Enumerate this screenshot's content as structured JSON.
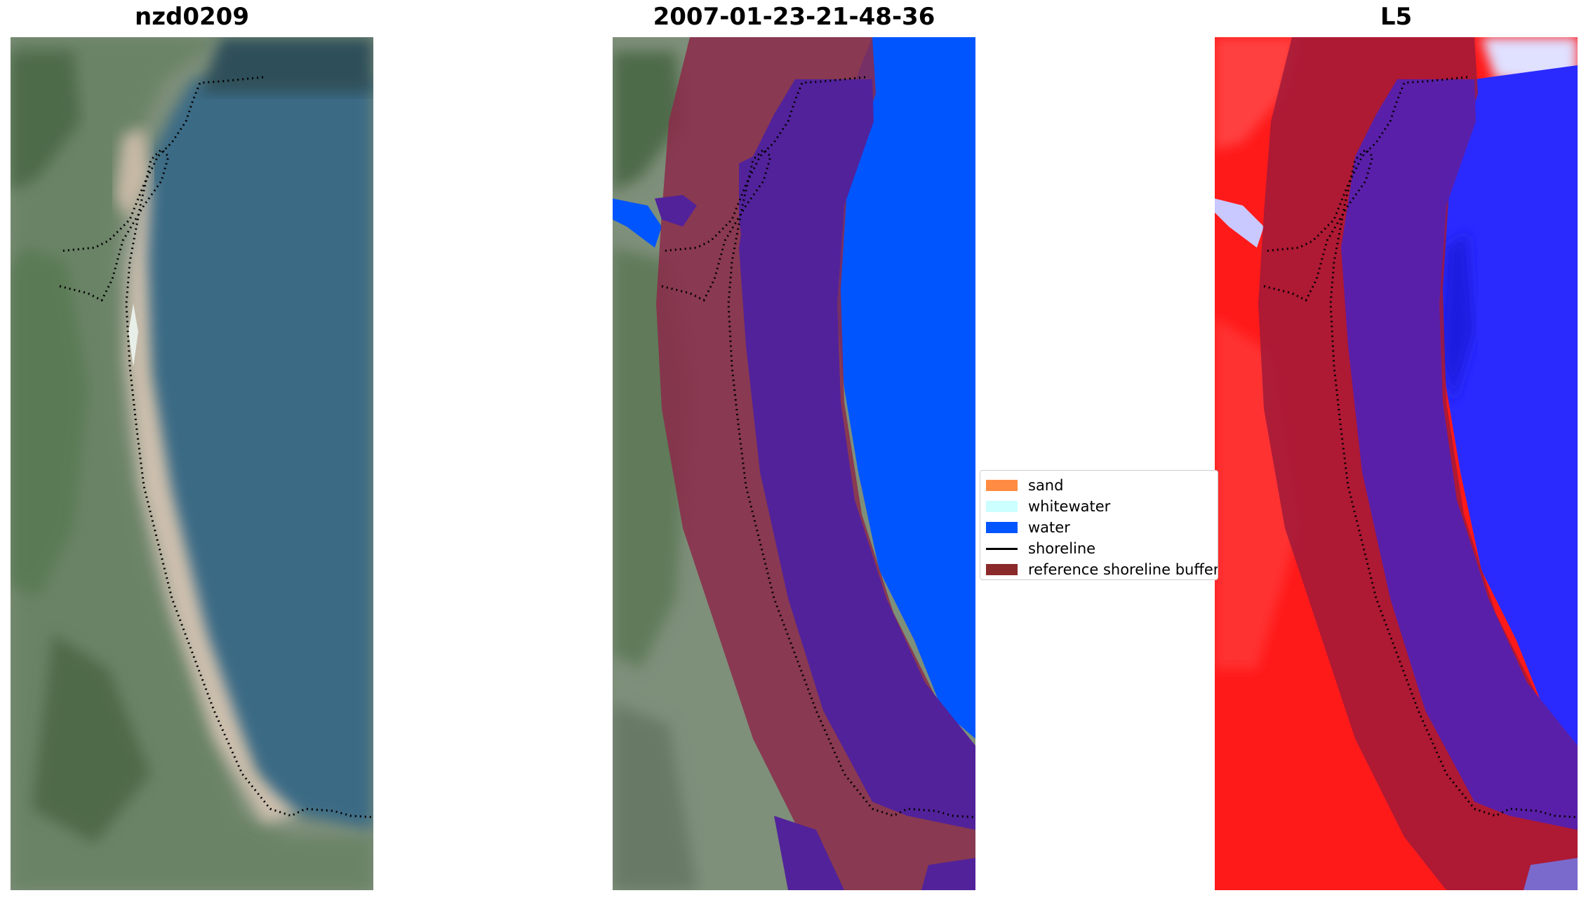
{
  "panels": [
    {
      "title": "nzd0209"
    },
    {
      "title": "2007-01-23-21-48-36"
    },
    {
      "title": "L5"
    }
  ],
  "legend": {
    "items": [
      {
        "label": "sand",
        "color": "#ff8c42",
        "kind": "patch"
      },
      {
        "label": "whitewater",
        "color": "#ccffff",
        "kind": "patch"
      },
      {
        "label": "water",
        "color": "#0055ff",
        "kind": "patch"
      },
      {
        "label": "shoreline",
        "color": "#000000",
        "kind": "line"
      },
      {
        "label": "reference shoreline buffer",
        "color": "#8b2a2a",
        "kind": "patch"
      }
    ]
  },
  "colors": {
    "land_green": "#5f7d5c",
    "sand": "#c9b8a6",
    "sea_blue": "#3b6f8a",
    "water_class": "#0055ff",
    "buffer": "#8b2a3a",
    "buffer_overlap": "#52229a",
    "index_red": "#ff1a1a",
    "index_blue": "#2a2aff"
  }
}
